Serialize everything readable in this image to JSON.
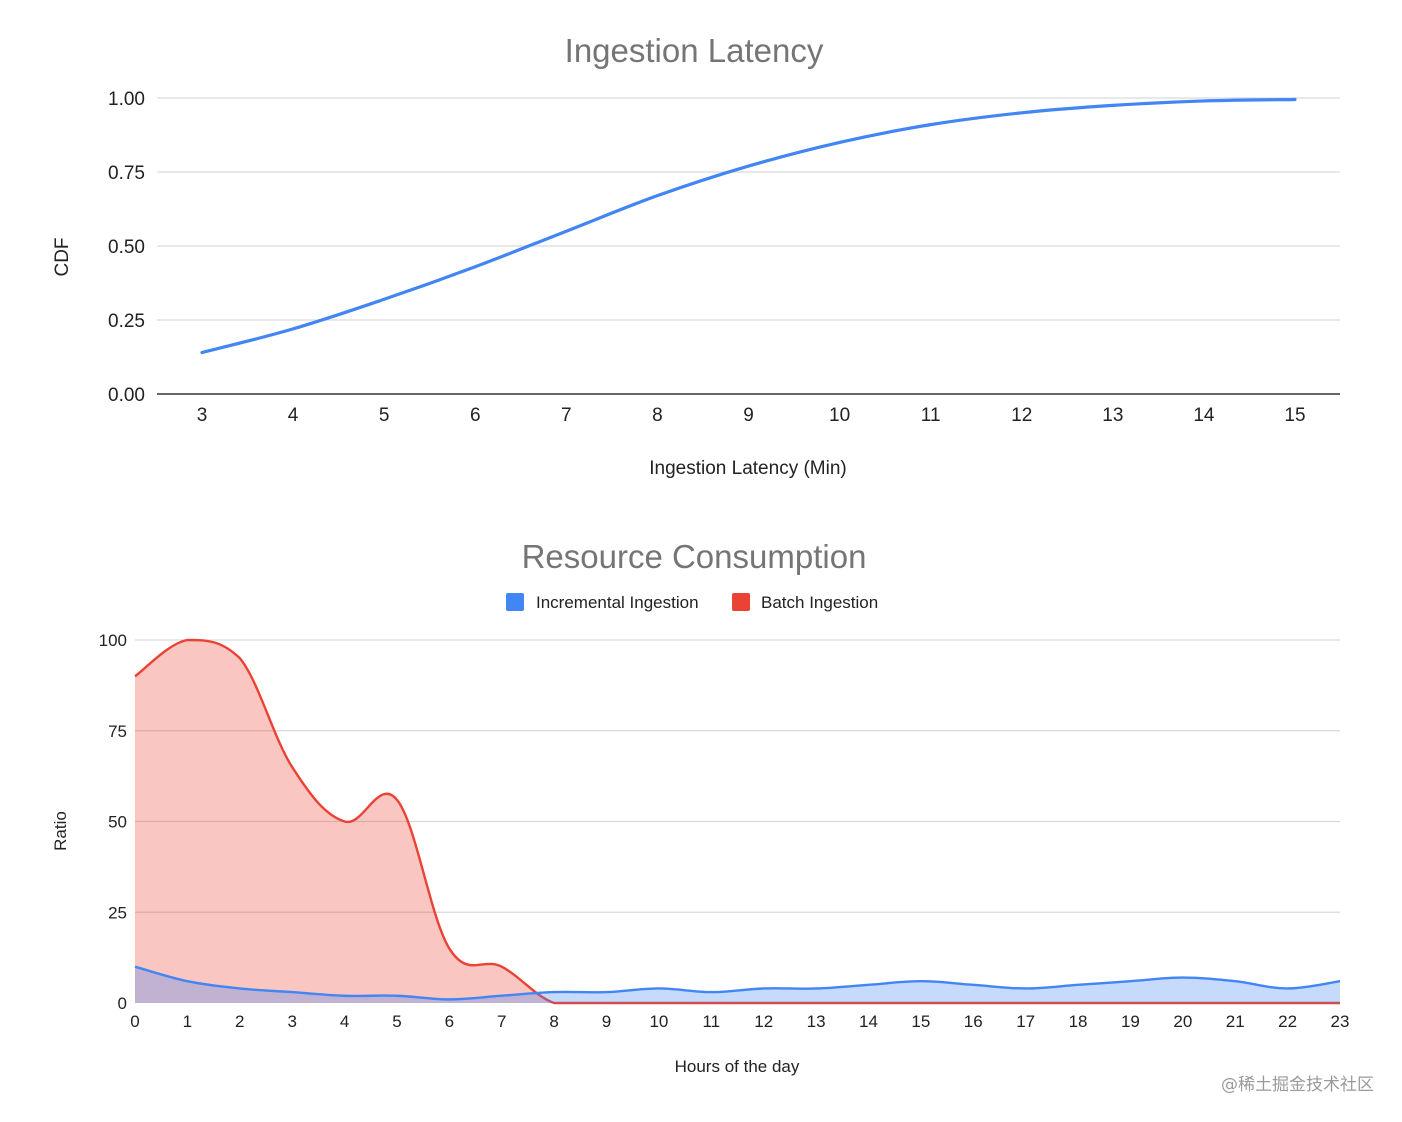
{
  "chart_data": [
    {
      "type": "line",
      "title": "Ingestion Latency",
      "xlabel": "Ingestion Latency (Min)",
      "ylabel": "CDF",
      "x_ticks": [
        "3",
        "4",
        "5",
        "6",
        "7",
        "8",
        "9",
        "10",
        "11",
        "12",
        "13",
        "14",
        "15"
      ],
      "y_ticks": [
        "0.00",
        "0.25",
        "0.50",
        "0.75",
        "1.00"
      ],
      "xlim": [
        3,
        15
      ],
      "ylim": [
        0,
        1
      ],
      "grid": true,
      "legend": "none",
      "series": [
        {
          "color": "#4285f4",
          "x": [
            3,
            4,
            5,
            6,
            7,
            8,
            9,
            10,
            11,
            12,
            13,
            14,
            15
          ],
          "y": [
            0.14,
            0.22,
            0.32,
            0.43,
            0.55,
            0.67,
            0.77,
            0.85,
            0.91,
            0.95,
            0.975,
            0.99,
            0.995
          ]
        }
      ]
    },
    {
      "type": "area",
      "title": "Resource Consumption",
      "xlabel": "Hours of the day",
      "ylabel": "Ratio",
      "x_ticks": [
        "0",
        "1",
        "2",
        "3",
        "4",
        "5",
        "6",
        "7",
        "8",
        "9",
        "10",
        "11",
        "12",
        "13",
        "14",
        "15",
        "16",
        "17",
        "18",
        "19",
        "20",
        "21",
        "22",
        "23"
      ],
      "y_ticks": [
        "0",
        "25",
        "50",
        "75",
        "100"
      ],
      "xlim": [
        0,
        23
      ],
      "ylim": [
        0,
        100
      ],
      "grid": true,
      "legend": "top-center",
      "series": [
        {
          "name": "Incremental Ingestion",
          "color": "#4285f4",
          "x": [
            0,
            1,
            2,
            3,
            4,
            5,
            6,
            7,
            8,
            9,
            10,
            11,
            12,
            13,
            14,
            15,
            16,
            17,
            18,
            19,
            20,
            21,
            22,
            23
          ],
          "values": [
            10,
            6,
            4,
            3,
            2,
            2,
            1,
            2,
            3,
            3,
            4,
            3,
            4,
            4,
            5,
            6,
            5,
            4,
            5,
            6,
            7,
            6,
            4,
            6
          ]
        },
        {
          "name": "Batch Ingestion",
          "color": "#ea4335",
          "x": [
            0,
            1,
            2,
            3,
            4,
            5,
            6,
            7,
            8,
            9,
            10,
            11,
            12,
            13,
            14,
            15,
            16,
            17,
            18,
            19,
            20,
            21,
            22,
            23
          ],
          "values": [
            90,
            100,
            95,
            65,
            50,
            56,
            15,
            10,
            0,
            0,
            0,
            0,
            0,
            0,
            0,
            0,
            0,
            0,
            0,
            0,
            0,
            0,
            0,
            0
          ]
        }
      ]
    }
  ],
  "watermark": "@稀土掘金技术社区"
}
